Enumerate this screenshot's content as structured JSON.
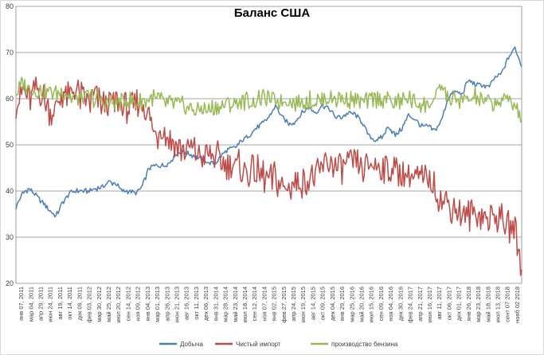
{
  "chart_data": {
    "type": "line",
    "title": "Баланс США",
    "ylim": [
      20,
      80
    ],
    "yticks": [
      20,
      30,
      40,
      50,
      60,
      70,
      80
    ],
    "grid": true,
    "legend_position": "bottom",
    "x_tick_labels": [
      "янв 07, 2011",
      "мар 04, 2011",
      "апр 29, 2011",
      "июн 24, 2011",
      "авг 19, 2011",
      "окт 14, 2011",
      "дек 09, 2011",
      "фев 03, 2012",
      "мар 30, 2012",
      "май 25, 2012",
      "июл 20, 2012",
      "сен 14, 2012",
      "ноя 09, 2012",
      "янв 04, 2013",
      "мар 01, 2013",
      "апр 26, 2013",
      "июн 21, 2013",
      "авг 16, 2013",
      "окт 11, 2013",
      "дек 06, 2013",
      "янв 31, 2014",
      "мар 28, 2014",
      "май 23, 2014",
      "июл 18, 2014",
      "сен 12, 2014",
      "ноя 07, 2014",
      "янв 02, 2015",
      "фев 27, 2015",
      "апр 24, 2015",
      "июн 19, 2015",
      "авг 14, 2015",
      "окт 09, 2015",
      "дек 04, 2015",
      "янв 29, 2016",
      "мар 25, 2016",
      "май 20, 2016",
      "июл 15, 2016",
      "сен 09, 2016",
      "ноя 04, 2016",
      "дек 30, 2016",
      "фев 24, 2017",
      "апр 21, 2017",
      "июн 16, 2017",
      "авг 11, 2017",
      "окт 06, 2017",
      "дек 01, 2017",
      "янв 26, 2018",
      "мар 23, 2018",
      "май 18, 2018",
      "июл 13, 2018",
      "сент 07 2018",
      "нояб 02 2018"
    ],
    "series": [
      {
        "name": "Добыча",
        "color": "#4a7ebb",
        "values": [
          36.5,
          39.5,
          40.5,
          39.0,
          37.5,
          36.0,
          34.5,
          37.5,
          39.5,
          40.0,
          40.0,
          40.0,
          40.5,
          41.0,
          42.0,
          41.5,
          40.0,
          40.0,
          39.5,
          41.0,
          45.0,
          45.5,
          45.5,
          46.0,
          48.0,
          48.5,
          48.0,
          47.5,
          47.0,
          46.0,
          46.0,
          48.0,
          49.0,
          49.5,
          51.0,
          52.0,
          53.5,
          54.5,
          56.0,
          58.5,
          56.0,
          54.5,
          55.0,
          57.0,
          58.0,
          57.0,
          58.5,
          58.0,
          56.0,
          56.0,
          57.0,
          56.5,
          55.0,
          52.0,
          51.0,
          51.5,
          54.0,
          52.0,
          53.5,
          56.5,
          55.5,
          54.0,
          54.0,
          53.0,
          55.5,
          60.5,
          61.5,
          61.0,
          64.0,
          63.0,
          63.0,
          62.5,
          64.5,
          65.5,
          69.0,
          71.0,
          67.0
        ]
      },
      {
        "name": "Чистый импорт",
        "color": "#be4b48",
        "values": [
          59.0,
          62.0,
          60.0,
          61.5,
          60.5,
          57.0,
          58.0,
          61.0,
          60.0,
          62.0,
          60.0,
          59.0,
          61.0,
          59.0,
          59.0,
          59.0,
          58.5,
          58.0,
          58.5,
          59.0,
          56.5,
          51.5,
          54.0,
          51.0,
          50.5,
          48.5,
          49.5,
          48.5,
          46.5,
          48.0,
          47.5,
          46.0,
          45.5,
          45.5,
          45.0,
          44.0,
          44.0,
          43.5,
          42.0,
          43.0,
          40.5,
          41.0,
          41.5,
          42.0,
          43.5,
          43.0,
          44.5,
          46.0,
          45.5,
          45.0,
          46.0,
          45.5,
          45.0,
          45.0,
          45.5,
          46.0,
          44.5,
          44.5,
          44.0,
          43.5,
          43.0,
          42.0,
          42.5,
          40.5,
          38.0,
          37.0,
          36.0,
          35.0,
          35.0,
          35.0,
          34.5,
          34.0,
          35.0,
          34.0,
          32.5,
          32.0,
          23.0
        ]
      },
      {
        "name": "производство бензина",
        "color": "#98b954",
        "values": [
          61.0,
          63.5,
          62.0,
          62.0,
          61.5,
          61.5,
          61.0,
          61.5,
          60.5,
          60.0,
          60.0,
          60.5,
          60.0,
          59.5,
          59.0,
          59.0,
          59.5,
          59.5,
          59.0,
          59.5,
          60.0,
          60.0,
          59.5,
          59.0,
          59.0,
          58.5,
          58.0,
          57.5,
          57.5,
          58.0,
          58.0,
          58.5,
          59.0,
          59.0,
          59.5,
          59.5,
          59.5,
          60.0,
          60.0,
          59.5,
          59.5,
          59.5,
          59.0,
          59.0,
          59.5,
          59.5,
          59.5,
          60.0,
          60.0,
          60.0,
          60.0,
          59.5,
          59.0,
          59.5,
          60.0,
          60.0,
          59.5,
          59.0,
          59.5,
          60.0,
          59.0,
          58.5,
          58.5,
          60.0,
          63.0,
          60.0,
          59.5,
          59.5,
          60.0,
          60.5,
          59.5,
          59.0,
          59.0,
          59.5,
          60.0,
          59.0,
          55.5
        ]
      }
    ]
  }
}
